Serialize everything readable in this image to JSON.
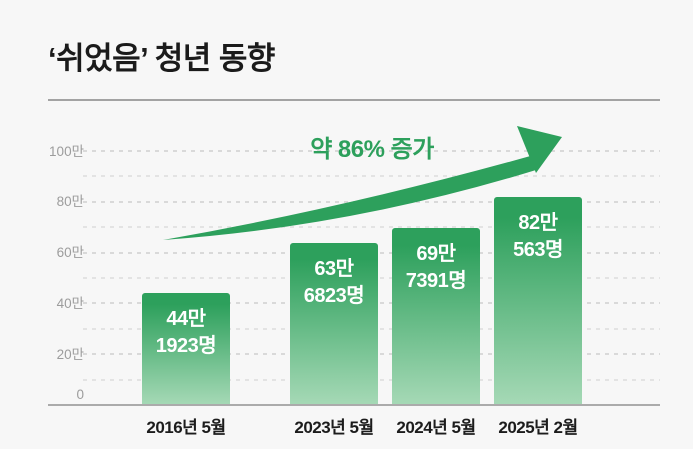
{
  "page": {
    "background": "#f7f7f7"
  },
  "header": {
    "title": "‘쉬었음’ 청년 동향"
  },
  "annotation": {
    "label": "약 86% 증가",
    "color": "#2da05c"
  },
  "chart_data": {
    "type": "bar",
    "title": "‘쉬었음’ 청년 동향",
    "categories": [
      "2016년 5월",
      "2023년 5월",
      "2024년 5월",
      "2025년 2월"
    ],
    "values": [
      441923,
      636823,
      697391,
      820563
    ],
    "value_labels": [
      [
        "44만",
        "1923명"
      ],
      [
        "63만",
        "6823명"
      ],
      [
        "69만",
        "7391명"
      ],
      [
        "82만",
        "563명"
      ]
    ],
    "unit": "명",
    "ylim": [
      0,
      1000000
    ],
    "y_ticks": [
      {
        "label": "100만",
        "value": 1000000
      },
      {
        "label": "80만",
        "value": 800000
      },
      {
        "label": "60만",
        "value": 600000
      },
      {
        "label": "40만",
        "value": 400000
      },
      {
        "label": "20만",
        "value": 200000
      },
      {
        "label": "0",
        "value": 0
      }
    ],
    "y_minor_ticks": [
      900000,
      700000,
      500000,
      300000,
      100000
    ],
    "grid": "dashed-horizontal",
    "legend": "none",
    "annotation": "약 86% 증가",
    "bar_color_top": "#2da05c",
    "bar_color_bottom": "#a6d9b6",
    "bar_label_color": "#ffffff",
    "arrow_color": "#2da05c"
  }
}
